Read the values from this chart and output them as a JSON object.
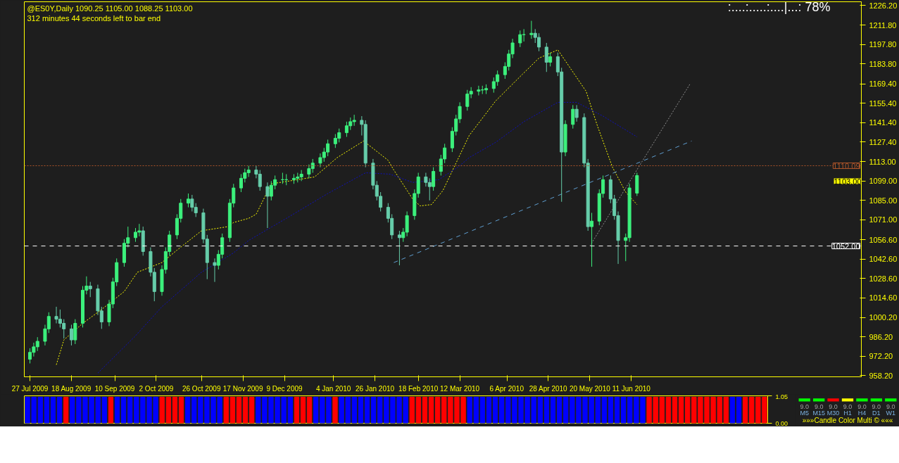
{
  "chart_data": [
    {
      "type": "candlestick",
      "title": "@ES0Y,Daily  1090.25 1105.00 1088.25 1103.00",
      "subtitle": "312 minutes 44 seconds left to bar end",
      "annotations": [
        ":....:.....:....|...:  78%",
        "1103.00"
      ],
      "x": [
        "2009-07-27",
        "2009-07-29",
        "2009-07-31",
        "2009-08-04",
        "2009-08-06",
        "2009-08-10",
        "2009-08-12",
        "2009-08-14",
        "2009-08-18",
        "2009-08-20",
        "2009-08-24",
        "2009-08-26",
        "2009-08-28",
        "2009-09-01",
        "2009-09-03",
        "2009-09-07",
        "2009-09-09",
        "2009-09-11",
        "2009-09-15",
        "2009-09-17",
        "2009-09-21",
        "2009-09-23",
        "2009-09-25",
        "2009-09-29",
        "2009-10-01",
        "2009-10-05",
        "2009-10-07",
        "2009-10-09",
        "2009-10-13",
        "2009-10-15",
        "2009-10-19",
        "2009-10-21",
        "2009-10-23",
        "2009-10-27",
        "2009-10-29",
        "2009-11-02",
        "2009-11-04",
        "2009-11-06",
        "2009-11-10",
        "2009-11-12",
        "2009-11-16",
        "2009-11-18",
        "2009-11-20",
        "2009-11-24",
        "2009-11-26",
        "2009-11-30",
        "2009-12-02",
        "2009-12-04",
        "2009-12-08",
        "2009-12-10",
        "2009-12-14",
        "2009-12-16",
        "2009-12-18",
        "2009-12-22",
        "2009-12-24",
        "2009-12-28",
        "2009-12-30",
        "2010-01-01",
        "2010-01-05",
        "2010-01-07",
        "2010-01-11",
        "2010-01-13",
        "2010-01-15",
        "2010-01-19",
        "2010-01-21",
        "2010-01-25",
        "2010-01-27",
        "2010-01-29",
        "2010-02-02",
        "2010-02-04",
        "2010-02-08",
        "2010-02-10",
        "2010-02-12",
        "2010-02-16",
        "2010-02-18",
        "2010-02-22",
        "2010-02-24",
        "2010-02-26",
        "2010-03-02",
        "2010-03-04",
        "2010-03-08",
        "2010-03-10",
        "2010-03-12",
        "2010-03-16",
        "2010-03-18",
        "2010-03-22",
        "2010-03-24",
        "2010-03-26",
        "2010-03-30",
        "2010-04-01",
        "2010-04-05",
        "2010-04-07",
        "2010-04-09",
        "2010-04-13",
        "2010-04-15",
        "2010-04-19",
        "2010-04-21",
        "2010-04-23",
        "2010-04-27",
        "2010-04-29",
        "2010-05-03",
        "2010-05-05",
        "2010-05-07",
        "2010-05-11",
        "2010-05-13",
        "2010-05-17",
        "2010-05-19",
        "2010-05-21",
        "2010-05-25",
        "2010-05-27",
        "2010-05-31",
        "2010-06-02",
        "2010-06-04",
        "2010-06-08",
        "2010-06-10",
        "2010-06-14"
      ],
      "ohlc": [
        [
          970,
          978,
          967,
          975
        ],
        [
          975,
          982,
          972,
          979
        ],
        [
          979,
          986,
          976,
          983
        ],
        [
          983,
          995,
          980,
          992
        ],
        [
          992,
          1004,
          989,
          1001
        ],
        [
          1001,
          1008,
          996,
          999
        ],
        [
          999,
          1006,
          993,
          996
        ],
        [
          996,
          999,
          985,
          992
        ],
        [
          992,
          995,
          980,
          984
        ],
        [
          984,
          999,
          981,
          996
        ],
        [
          996,
          1023,
          993,
          1020
        ],
        [
          1020,
          1030,
          1017,
          1023
        ],
        [
          1023,
          1026,
          1015,
          1021
        ],
        [
          1021,
          1024,
          1002,
          1005
        ],
        [
          1005,
          1008,
          992,
          997
        ],
        [
          997,
          1013,
          994,
          1010
        ],
        [
          1010,
          1029,
          1007,
          1026
        ],
        [
          1026,
          1043,
          1023,
          1040
        ],
        [
          1040,
          1057,
          1037,
          1054
        ],
        [
          1054,
          1066,
          1051,
          1058
        ],
        [
          1058,
          1065,
          1055,
          1062
        ],
        [
          1062,
          1068,
          1059,
          1063
        ],
        [
          1063,
          1066,
          1045,
          1048
        ],
        [
          1048,
          1051,
          1030,
          1033
        ],
        [
          1033,
          1036,
          1012,
          1019
        ],
        [
          1019,
          1038,
          1016,
          1035
        ],
        [
          1035,
          1051,
          1032,
          1048
        ],
        [
          1048,
          1063,
          1045,
          1060
        ],
        [
          1060,
          1075,
          1057,
          1072
        ],
        [
          1072,
          1086,
          1069,
          1083
        ],
        [
          1083,
          1090,
          1080,
          1086
        ],
        [
          1086,
          1089,
          1077,
          1080
        ],
        [
          1080,
          1083,
          1073,
          1076
        ],
        [
          1076,
          1079,
          1054,
          1057
        ],
        [
          1057,
          1060,
          1028,
          1040
        ],
        [
          1040,
          1043,
          1026,
          1038
        ],
        [
          1038,
          1049,
          1035,
          1046
        ],
        [
          1046,
          1061,
          1043,
          1058
        ],
        [
          1058,
          1086,
          1055,
          1083
        ],
        [
          1083,
          1097,
          1080,
          1094
        ],
        [
          1094,
          1104,
          1091,
          1101
        ],
        [
          1101,
          1108,
          1098,
          1105
        ],
        [
          1105,
          1110,
          1102,
          1107
        ],
        [
          1107,
          1110,
          1101,
          1104
        ],
        [
          1104,
          1107,
          1092,
          1095
        ],
        [
          1095,
          1098,
          1065,
          1088
        ],
        [
          1088,
          1099,
          1085,
          1096
        ],
        [
          1096,
          1103,
          1093,
          1100
        ],
        [
          1100,
          1105,
          1097,
          1100
        ],
        [
          1100,
          1104,
          1096,
          1100
        ],
        [
          1100,
          1104,
          1097,
          1101
        ],
        [
          1101,
          1105,
          1098,
          1102
        ],
        [
          1102,
          1107,
          1099,
          1104
        ],
        [
          1104,
          1111,
          1101,
          1108
        ],
        [
          1108,
          1115,
          1105,
          1112
        ],
        [
          1112,
          1119,
          1109,
          1116
        ],
        [
          1116,
          1123,
          1113,
          1120
        ],
        [
          1120,
          1129,
          1117,
          1126
        ],
        [
          1126,
          1133,
          1123,
          1130
        ],
        [
          1130,
          1137,
          1127,
          1134
        ],
        [
          1134,
          1142,
          1131,
          1139
        ],
        [
          1139,
          1145,
          1136,
          1142
        ],
        [
          1142,
          1147,
          1139,
          1143
        ],
        [
          1143,
          1146,
          1132,
          1140
        ],
        [
          1140,
          1143,
          1109,
          1112
        ],
        [
          1112,
          1115,
          1093,
          1096
        ],
        [
          1096,
          1099,
          1085,
          1088
        ],
        [
          1088,
          1091,
          1077,
          1080
        ],
        [
          1080,
          1083,
          1069,
          1072
        ],
        [
          1072,
          1075,
          1057,
          1060
        ],
        [
          1060,
          1063,
          1038,
          1058
        ],
        [
          1058,
          1065,
          1055,
          1062
        ],
        [
          1062,
          1077,
          1059,
          1074
        ],
        [
          1074,
          1093,
          1071,
          1090
        ],
        [
          1090,
          1105,
          1087,
          1102
        ],
        [
          1102,
          1105,
          1095,
          1098
        ],
        [
          1098,
          1101,
          1085,
          1095
        ],
        [
          1095,
          1109,
          1092,
          1106
        ],
        [
          1106,
          1118,
          1103,
          1115
        ],
        [
          1115,
          1126,
          1112,
          1123
        ],
        [
          1123,
          1138,
          1120,
          1135
        ],
        [
          1135,
          1147,
          1132,
          1144
        ],
        [
          1144,
          1156,
          1141,
          1153
        ],
        [
          1153,
          1165,
          1150,
          1162
        ],
        [
          1162,
          1167,
          1159,
          1164
        ],
        [
          1164,
          1168,
          1161,
          1165
        ],
        [
          1165,
          1168,
          1162,
          1165
        ],
        [
          1165,
          1169,
          1162,
          1166
        ],
        [
          1166,
          1174,
          1163,
          1171
        ],
        [
          1171,
          1179,
          1168,
          1176
        ],
        [
          1176,
          1185,
          1173,
          1182
        ],
        [
          1182,
          1194,
          1179,
          1191
        ],
        [
          1191,
          1202,
          1188,
          1199
        ],
        [
          1199,
          1208,
          1196,
          1205
        ],
        [
          1205,
          1209,
          1200,
          1205
        ],
        [
          1205,
          1215,
          1202,
          1206
        ],
        [
          1206,
          1209,
          1199,
          1203
        ],
        [
          1203,
          1206,
          1193,
          1196
        ],
        [
          1196,
          1199,
          1178,
          1185
        ],
        [
          1185,
          1192,
          1182,
          1189
        ],
        [
          1189,
          1192,
          1175,
          1178
        ],
        [
          1178,
          1181,
          1084,
          1120
        ],
        [
          1120,
          1143,
          1117,
          1140
        ],
        [
          1140,
          1154,
          1137,
          1151
        ],
        [
          1151,
          1154,
          1142,
          1145
        ],
        [
          1145,
          1148,
          1109,
          1112
        ],
        [
          1112,
          1115,
          1063,
          1066
        ],
        [
          1066,
          1076,
          1037,
          1070
        ],
        [
          1070,
          1093,
          1067,
          1090
        ],
        [
          1090,
          1103,
          1087,
          1100
        ],
        [
          1100,
          1103,
          1083,
          1086
        ],
        [
          1086,
          1089,
          1071,
          1074
        ],
        [
          1074,
          1077,
          1039,
          1056
        ],
        [
          1056,
          1061,
          1041,
          1058
        ],
        [
          1058,
          1097,
          1055,
          1094
        ],
        [
          1090.25,
          1105,
          1088.25,
          1103
        ]
      ],
      "colors": [
        "#3cf07c",
        "#3cf07c",
        "#3cf07c",
        "#3cf07c",
        "#3cf07c",
        "#66cdaa",
        "#66cdaa",
        "#66cdaa",
        "#66cdaa",
        "#3cf07c",
        "#3cf07c",
        "#3cf07c",
        "#66cdaa",
        "#66cdaa",
        "#66cdaa",
        "#3cf07c",
        "#3cf07c",
        "#3cf07c",
        "#3cf07c",
        "#3cf07c",
        "#3cf07c",
        "#3cf07c",
        "#66cdaa",
        "#66cdaa",
        "#66cdaa",
        "#3cf07c",
        "#3cf07c",
        "#3cf07c",
        "#3cf07c",
        "#3cf07c",
        "#3cf07c",
        "#66cdaa",
        "#66cdaa",
        "#66cdaa",
        "#66cdaa",
        "#66cdaa",
        "#3cf07c",
        "#3cf07c",
        "#3cf07c",
        "#3cf07c",
        "#3cf07c",
        "#3cf07c",
        "#3cf07c",
        "#66cdaa",
        "#66cdaa",
        "#66cdaa",
        "#3cf07c",
        "#3cf07c",
        "#3cf07c",
        "#3cf07c",
        "#3cf07c",
        "#3cf07c",
        "#3cf07c",
        "#3cf07c",
        "#3cf07c",
        "#3cf07c",
        "#3cf07c",
        "#3cf07c",
        "#3cf07c",
        "#3cf07c",
        "#3cf07c",
        "#3cf07c",
        "#3cf07c",
        "#66cdaa",
        "#66cdaa",
        "#66cdaa",
        "#66cdaa",
        "#66cdaa",
        "#66cdaa",
        "#66cdaa",
        "#66cdaa",
        "#3cf07c",
        "#3cf07c",
        "#3cf07c",
        "#3cf07c",
        "#66cdaa",
        "#66cdaa",
        "#3cf07c",
        "#3cf07c",
        "#3cf07c",
        "#3cf07c",
        "#3cf07c",
        "#3cf07c",
        "#3cf07c",
        "#3cf07c",
        "#3cf07c",
        "#3cf07c",
        "#3cf07c",
        "#3cf07c",
        "#3cf07c",
        "#3cf07c",
        "#3cf07c",
        "#3cf07c",
        "#3cf07c",
        "#3cf07c",
        "#3cf07c",
        "#66cdaa",
        "#66cdaa",
        "#66cdaa",
        "#3cf07c",
        "#66cdaa",
        "#66cdaa",
        "#3cf07c",
        "#3cf07c",
        "#66cdaa",
        "#66cdaa",
        "#66cdaa",
        "#3cf07c",
        "#3cf07c",
        "#3cf07c",
        "#66cdaa",
        "#66cdaa",
        "#66cdaa",
        "#3cf07c",
        "#3cf07c",
        "#3cf07c"
      ],
      "series": [
        {
          "type": "line",
          "color": "#ffff00",
          "line_style": "dotted",
          "x": [
            "2009-08-10",
            "2009-08-14",
            "2009-08-24",
            "2009-09-02",
            "2009-09-15",
            "2009-09-22",
            "2009-10-05",
            "2009-10-13",
            "2009-10-26",
            "2009-11-09",
            "2009-11-12",
            "2009-11-20",
            "2009-11-24",
            "2009-12-02",
            "2009-12-16",
            "2009-12-25",
            "2010-01-06",
            "2010-01-20",
            "2010-02-02",
            "2010-02-05",
            "2010-02-15",
            "2010-02-19",
            "2010-02-25",
            "2010-03-03",
            "2010-03-17",
            "2010-03-31",
            "2010-04-14",
            "2010-04-23",
            "2010-05-03",
            "2010-05-12",
            "2010-05-18",
            "2010-05-24",
            "2010-06-01",
            "2010-06-08",
            "2010-06-14"
          ],
          "values": [
            966,
            984,
            996,
            1005,
            1019,
            1033,
            1040,
            1049,
            1063,
            1066,
            1069,
            1072,
            1075,
            1097,
            1100,
            1102,
            1116,
            1128,
            1114,
            1107,
            1086,
            1081,
            1082,
            1092,
            1132,
            1157,
            1176,
            1188,
            1194,
            1176,
            1164,
            1139,
            1109,
            1091,
            1082
          ]
        },
        {
          "type": "line",
          "color": "#1010c0",
          "line_style": "dotted",
          "x": [
            "2009-09-01",
            "2009-09-21",
            "2009-10-05",
            "2009-10-26",
            "2009-11-12",
            "2009-11-20",
            "2009-12-10",
            "2010-01-01",
            "2010-01-21",
            "2010-02-03",
            "2010-02-15",
            "2010-03-01",
            "2010-03-03",
            "2010-03-11",
            "2010-03-17",
            "2010-03-31",
            "2010-04-15",
            "2010-05-03",
            "2010-05-13",
            "2010-05-27",
            "2010-06-14"
          ],
          "values": [
            960,
            987,
            1008,
            1033,
            1047,
            1056,
            1072,
            1090,
            1105,
            1104,
            1098,
            1100,
            1102,
            1109,
            1116,
            1127,
            1142,
            1156,
            1156,
            1146,
            1131
          ]
        },
        {
          "type": "line",
          "color": "#5f9ed1",
          "line_style": "dashed",
          "x": [
            "2010-02-05",
            "2010-07-13"
          ],
          "values": [
            1040,
            1128
          ]
        },
        {
          "type": "line",
          "color": "#909090",
          "line_style": "dotted",
          "x": [
            "2010-05-20",
            "2010-07-12"
          ],
          "values": [
            1052,
            1169
          ]
        }
      ],
      "ref_lines": [
        {
          "axis": "y",
          "value": 1052,
          "label": "1052.00",
          "color": "#ffffff",
          "line_style": "dashed"
        },
        {
          "axis": "y",
          "value": 1110.09,
          "label": "1110.09",
          "color": "#b0562a",
          "line_style": "dotted"
        }
      ],
      "xlim": [
        "2009-07-24",
        "2010-10-11"
      ],
      "xticks": [
        {
          "value": "2009-07-27",
          "label": "27 Jul 2009"
        },
        {
          "value": "2009-08-18",
          "label": "18 Aug 2009"
        },
        {
          "value": "2009-09-10",
          "label": "10 Sep 2009"
        },
        {
          "value": "2009-10-02",
          "label": "2 Oct 2009"
        },
        {
          "value": "2009-10-26",
          "label": "26 Oct 2009"
        },
        {
          "value": "2009-11-17",
          "label": "17 Nov 2009"
        },
        {
          "value": "2009-12-09",
          "label": "9 Dec 2009"
        },
        {
          "value": "2010-01-04",
          "label": "4 Jan 2010"
        },
        {
          "value": "2010-01-26",
          "label": "26 Jan 2010"
        },
        {
          "value": "2010-02-18",
          "label": "18 Feb 2010"
        },
        {
          "value": "2010-03-12",
          "label": "12 Mar 2010"
        },
        {
          "value": "2010-04-06",
          "label": "6 Apr 2010"
        },
        {
          "value": "2010-04-28",
          "label": "28 Apr 2010"
        },
        {
          "value": "2010-05-20",
          "label": "20 May 2010"
        },
        {
          "value": "2010-06-11",
          "label": "11 Jun 2010"
        }
      ],
      "ylim": [
        957.3,
        1228.8
      ],
      "yticks": [
        {
          "value": 958.2,
          "label": "958.20"
        },
        {
          "value": 972.2,
          "label": "972.20"
        },
        {
          "value": 986.2,
          "label": "986.20"
        },
        {
          "value": 1000.2,
          "label": "1000.20"
        },
        {
          "value": 1014.6,
          "label": "1014.60"
        },
        {
          "value": 1028.6,
          "label": "1028.60"
        },
        {
          "value": 1042.6,
          "label": "1042.60"
        },
        {
          "value": 1056.6,
          "label": "1056.60"
        },
        {
          "value": 1071,
          "label": "1071.00"
        },
        {
          "value": 1085,
          "label": "1085.00"
        },
        {
          "value": 1099,
          "label": "1099.00"
        },
        {
          "value": 1113,
          "label": "1113.00"
        },
        {
          "value": 1127.4,
          "label": "1127.40"
        },
        {
          "value": 1141.4,
          "label": "1141.40"
        },
        {
          "value": 1155.4,
          "label": "1155.40"
        },
        {
          "value": 1169.4,
          "label": "1169.40"
        },
        {
          "value": 1183.8,
          "label": "1183.80"
        },
        {
          "value": 1197.8,
          "label": "1197.80"
        },
        {
          "value": 1211.8,
          "label": "1211.80"
        },
        {
          "value": 1226.2,
          "label": "1226.20"
        }
      ]
    },
    {
      "type": "bar",
      "categories": [
        null,
        null,
        null,
        null,
        null,
        null,
        null,
        null,
        null,
        null,
        null,
        null,
        null,
        null,
        null,
        null,
        null,
        null,
        null,
        null,
        null,
        null,
        null,
        null,
        null,
        null,
        null,
        null,
        null,
        null,
        null,
        null,
        null,
        null,
        null,
        null,
        null,
        null,
        null,
        null,
        null,
        null,
        null,
        null,
        null,
        null,
        null,
        null,
        null,
        null,
        null,
        null,
        null,
        null,
        null,
        null,
        null,
        null,
        null,
        null,
        null,
        null,
        null,
        null,
        null,
        null,
        null,
        null,
        null,
        null,
        null,
        null,
        null,
        null,
        null,
        null,
        null,
        null,
        null,
        null,
        null,
        null,
        null,
        null,
        null,
        null,
        null,
        null,
        null,
        null,
        null,
        null,
        null,
        null,
        null,
        null,
        null,
        null,
        null,
        null,
        null,
        null,
        null,
        null,
        null,
        null,
        null,
        null,
        null,
        null,
        null,
        null,
        null,
        null,
        null,
        null
      ],
      "values": [
        1,
        1,
        1,
        1,
        1,
        1,
        1,
        1,
        1,
        1,
        1,
        1,
        1,
        1,
        1,
        1,
        1,
        1,
        1,
        1,
        1,
        1,
        1,
        1,
        1,
        1,
        1,
        1,
        1,
        1,
        1,
        1,
        1,
        1,
        1,
        1,
        1,
        1,
        1,
        1,
        1,
        1,
        1,
        1,
        1,
        1,
        1,
        1,
        1,
        1,
        1,
        1,
        1,
        1,
        1,
        1,
        1,
        1,
        1,
        1,
        1,
        1,
        1,
        1,
        1,
        1,
        1,
        1,
        1,
        1,
        1,
        1,
        1,
        1,
        1,
        1,
        1,
        1,
        1,
        1,
        1,
        1,
        1,
        1,
        1,
        1,
        1,
        1,
        1,
        1,
        1,
        1,
        1,
        1,
        1,
        1,
        1,
        1,
        1,
        1,
        1,
        1,
        1,
        1,
        1,
        1,
        1,
        1,
        1,
        1,
        1,
        1,
        1,
        1,
        1,
        1
      ],
      "colors": [
        "#0000ff",
        "#0000ff",
        "#0000ff",
        "#0000ff",
        "#0000ff",
        "#0000ff",
        "#ff0000",
        "#0000ff",
        "#0000ff",
        "#0000ff",
        "#0000ff",
        "#0000ff",
        "#0000ff",
        "#ff0000",
        "#0000ff",
        "#0000ff",
        "#0000ff",
        "#0000ff",
        "#0000ff",
        "#0000ff",
        "#0000ff",
        "#ff0000",
        "#ff0000",
        "#ff0000",
        "#ff0000",
        "#0000ff",
        "#0000ff",
        "#0000ff",
        "#0000ff",
        "#0000ff",
        "#0000ff",
        "#ff0000",
        "#ff0000",
        "#ff0000",
        "#ff0000",
        "#ff0000",
        "#0000ff",
        "#0000ff",
        "#0000ff",
        "#0000ff",
        "#0000ff",
        "#0000ff",
        "#ff0000",
        "#ff0000",
        "#ff0000",
        "#0000ff",
        "#0000ff",
        "#0000ff",
        "#ff0000",
        "#0000ff",
        "#0000ff",
        "#0000ff",
        "#0000ff",
        "#0000ff",
        "#0000ff",
        "#0000ff",
        "#0000ff",
        "#0000ff",
        "#0000ff",
        "#0000ff",
        "#ff0000",
        "#ff0000",
        "#ff0000",
        "#ff0000",
        "#ff0000",
        "#ff0000",
        "#ff0000",
        "#ff0000",
        "#ff0000",
        "#0000ff",
        "#0000ff",
        "#0000ff",
        "#0000ff",
        "#0000ff",
        "#0000ff",
        "#0000ff",
        "#0000ff",
        "#0000ff",
        "#0000ff",
        "#0000ff",
        "#0000ff",
        "#0000ff",
        "#0000ff",
        "#0000ff",
        "#0000ff",
        "#0000ff",
        "#0000ff",
        "#0000ff",
        "#0000ff",
        "#0000ff",
        "#0000ff",
        "#0000ff",
        "#0000ff",
        "#0000ff",
        "#0000ff",
        "#0000ff",
        "#0000ff",
        "#ff0000",
        "#ff0000",
        "#ff0000",
        "#ff0000",
        "#ff0000",
        "#ff0000",
        "#ff0000",
        "#ff0000",
        "#ff0000",
        "#ff0000",
        "#ff0000",
        "#ff0000",
        "#ff0000",
        "#0000ff",
        "#0000ff",
        "#ff0000",
        "#ff0000",
        "#ff0000",
        "#ff0000"
      ],
      "ylim": [
        0,
        1.05
      ],
      "yticks": [
        {
          "value": 0,
          "label": "0.00"
        },
        {
          "value": 1.05,
          "label": "1.05"
        }
      ]
    },
    {
      "type": "other",
      "title": "»»»Candle Color Multi © «««",
      "categories": [
        "M5",
        "M15",
        "M30",
        "H1",
        "H4",
        "D1",
        "W1"
      ],
      "values": [
        9.0,
        9.0,
        9.0,
        9.0,
        9.0,
        9.0,
        9.0
      ],
      "value_labels": [
        "9.0",
        "9.0",
        "9.0",
        "9.0",
        "9.0",
        "9.0",
        "9.0"
      ],
      "colors": [
        "#00ff00",
        "#00ff00",
        "#ff0000",
        "#ffff00",
        "#00ff00",
        "#00ff00",
        "#00ff00"
      ]
    }
  ]
}
